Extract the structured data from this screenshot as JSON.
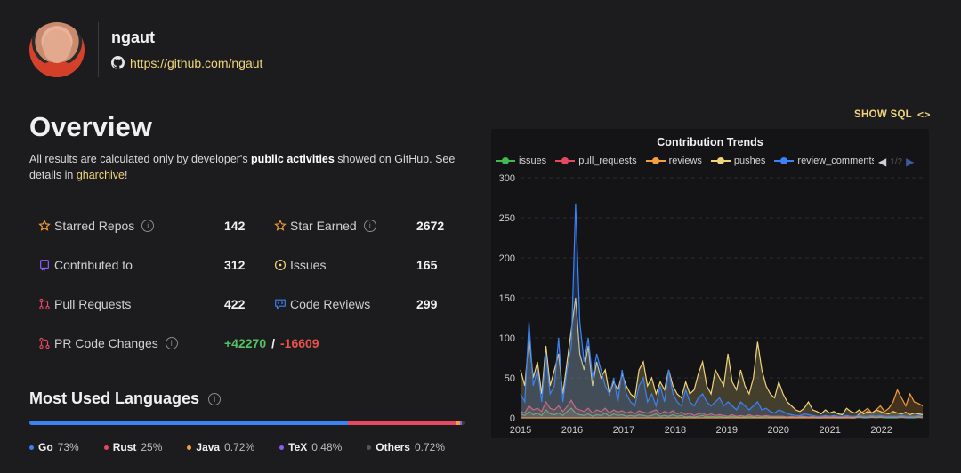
{
  "profile": {
    "username": "ngaut",
    "github_url": "https://github.com/ngaut"
  },
  "overview": {
    "title": "Overview",
    "desc_prefix": "All results are calculated only by developer's ",
    "desc_bold": "public activities",
    "desc_mid": " showed on GitHub. See details in ",
    "desc_link": "gharchive",
    "desc_suffix": "!"
  },
  "stats": {
    "starred_repos": {
      "label": "Starred Repos",
      "value": "142"
    },
    "star_earned": {
      "label": "Star Earned",
      "value": "2672"
    },
    "contributed_to": {
      "label": "Contributed to",
      "value": "312"
    },
    "issues": {
      "label": "Issues",
      "value": "165"
    },
    "pull_requests": {
      "label": "Pull Requests",
      "value": "422"
    },
    "code_reviews": {
      "label": "Code Reviews",
      "value": "299"
    },
    "pr_code_changes": {
      "label": "PR Code Changes",
      "additions": "+42270",
      "separator": "/",
      "deletions": "-16609"
    }
  },
  "languages": {
    "title": "Most Used Languages",
    "items": [
      {
        "name": "Go",
        "percent": "73%",
        "share": 73,
        "color": "#3b82f6"
      },
      {
        "name": "Rust",
        "percent": "25%",
        "share": 25,
        "color": "#e5485f"
      },
      {
        "name": "Java",
        "percent": "0.72%",
        "share": 0.72,
        "color": "#f59e3b"
      },
      {
        "name": "TeX",
        "percent": "0.48%",
        "share": 0.48,
        "color": "#8b5cf6"
      },
      {
        "name": "Others",
        "percent": "0.72%",
        "share": 0.72,
        "color": "#3a3a3c"
      }
    ]
  },
  "chart_header": {
    "show_sql": "SHOW SQL",
    "pager": "1/2"
  },
  "chart_data": {
    "type": "area",
    "title": "Contribution Trends",
    "ylim": [
      0,
      300
    ],
    "yticks": [
      "0",
      "50",
      "100",
      "150",
      "200",
      "250",
      "300"
    ],
    "xticks": [
      "2015",
      "2016",
      "2017",
      "2018",
      "2019",
      "2020",
      "2021",
      "2022"
    ],
    "legend_position": "top",
    "series": [
      {
        "name": "issues",
        "color": "#3fb950",
        "values": [
          5,
          3,
          8,
          4,
          6,
          3,
          10,
          5,
          4,
          6,
          3,
          8,
          12,
          6,
          4,
          3,
          5,
          2,
          4,
          3,
          6,
          2,
          5,
          3,
          4,
          2,
          3,
          2,
          4,
          3,
          2,
          3,
          5,
          2,
          3,
          2,
          4,
          2,
          3,
          1,
          2,
          1,
          2,
          3,
          1,
          2,
          1,
          2,
          1,
          1,
          2,
          1,
          1,
          1,
          2,
          1,
          1,
          1,
          2,
          1,
          1,
          1,
          1,
          0,
          1,
          0,
          1,
          1,
          0,
          1,
          0,
          0,
          1,
          0,
          1,
          0,
          0,
          1,
          0,
          0,
          1,
          0,
          0,
          1,
          0,
          1,
          0,
          0,
          0,
          0,
          1,
          0,
          0,
          0,
          1,
          0
        ]
      },
      {
        "name": "pull_requests",
        "color": "#e5485f",
        "values": [
          8,
          6,
          15,
          10,
          12,
          8,
          20,
          12,
          10,
          15,
          8,
          14,
          22,
          12,
          10,
          8,
          12,
          6,
          10,
          8,
          12,
          6,
          10,
          7,
          9,
          6,
          8,
          5,
          9,
          7,
          6,
          8,
          10,
          5,
          8,
          6,
          9,
          5,
          7,
          4,
          6,
          3,
          5,
          6,
          3,
          5,
          3,
          4,
          3,
          2,
          4,
          2,
          3,
          2,
          4,
          2,
          3,
          2,
          3,
          2,
          2,
          2,
          2,
          1,
          2,
          1,
          2,
          2,
          1,
          2,
          1,
          1,
          2,
          1,
          2,
          1,
          1,
          2,
          1,
          1,
          2,
          1,
          1,
          2,
          1,
          2,
          1,
          1,
          1,
          1,
          2,
          1,
          1,
          1,
          2,
          1
        ]
      },
      {
        "name": "reviews",
        "color": "#f59e3b",
        "values": [
          0,
          0,
          0,
          0,
          0,
          0,
          0,
          0,
          0,
          0,
          0,
          0,
          0,
          0,
          0,
          0,
          0,
          0,
          0,
          0,
          0,
          0,
          0,
          0,
          0,
          0,
          0,
          0,
          0,
          0,
          0,
          0,
          0,
          0,
          0,
          0,
          0,
          0,
          0,
          0,
          0,
          0,
          0,
          0,
          0,
          0,
          0,
          0,
          0,
          0,
          0,
          0,
          0,
          0,
          0,
          0,
          0,
          0,
          0,
          0,
          0,
          0,
          0,
          0,
          0,
          0,
          0,
          0,
          0,
          0,
          0,
          0,
          0,
          0,
          0,
          0,
          0,
          0,
          0,
          0,
          5,
          8,
          12,
          6,
          10,
          15,
          8,
          12,
          20,
          35,
          25,
          15,
          30,
          20,
          18,
          15
        ]
      },
      {
        "name": "pushes",
        "color": "#f0d47a",
        "values": [
          60,
          40,
          100,
          50,
          70,
          30,
          90,
          40,
          60,
          80,
          30,
          70,
          110,
          150,
          80,
          60,
          90,
          40,
          70,
          50,
          60,
          30,
          45,
          35,
          55,
          40,
          30,
          25,
          60,
          70,
          40,
          50,
          30,
          45,
          35,
          60,
          40,
          30,
          25,
          45,
          30,
          35,
          55,
          70,
          40,
          30,
          60,
          50,
          40,
          80,
          45,
          35,
          60,
          40,
          30,
          50,
          95,
          60,
          40,
          30,
          25,
          45,
          30,
          20,
          15,
          10,
          8,
          12,
          20,
          10,
          8,
          5,
          10,
          6,
          8,
          5,
          4,
          12,
          8,
          6,
          10,
          5,
          8,
          6,
          10,
          8,
          6,
          5,
          8,
          6,
          5,
          7,
          4,
          6,
          5,
          4
        ]
      },
      {
        "name": "review_comments",
        "color": "#3b82f6",
        "values": [
          30,
          20,
          120,
          40,
          60,
          20,
          80,
          30,
          40,
          100,
          20,
          60,
          90,
          268,
          120,
          70,
          100,
          50,
          80,
          60,
          40,
          30,
          50,
          20,
          60,
          30,
          20,
          15,
          40,
          50,
          20,
          30,
          15,
          40,
          20,
          60,
          30,
          20,
          15,
          35,
          20,
          15,
          25,
          30,
          20,
          15,
          20,
          25,
          15,
          20,
          15,
          10,
          20,
          15,
          10,
          15,
          20,
          10,
          12,
          8,
          6,
          10,
          8,
          5,
          4,
          3,
          3,
          5,
          4,
          3,
          2,
          2,
          3,
          2,
          3,
          2,
          2,
          3,
          2,
          2,
          3,
          2,
          2,
          3,
          2,
          3,
          2,
          2,
          2,
          2,
          3,
          2,
          2,
          2,
          3,
          2
        ]
      }
    ]
  }
}
